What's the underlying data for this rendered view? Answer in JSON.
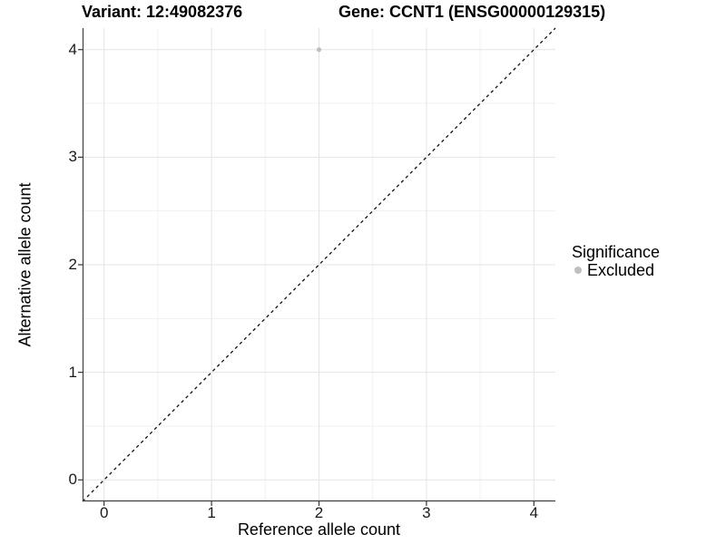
{
  "header": {
    "variant_title": "Variant: 12:49082376",
    "gene_title": "Gene: CCNT1 (ENSG00000129315)"
  },
  "axes": {
    "x_label": "Reference allele count",
    "y_label": "Alternative allele count"
  },
  "legend": {
    "title": "Significance",
    "items": [
      {
        "label": "Excluded",
        "color": "#bfbfbf"
      }
    ]
  },
  "colors": {
    "background": "#ffffff",
    "grid_major": "#e4e4e4",
    "grid_minor": "#f1f1f1",
    "axis_line": "#404040",
    "tick_mark": "#333333",
    "tick_text": "#1a1a1a",
    "point": "#bfbfbf",
    "reference_line": "#111111"
  },
  "chart_data": {
    "type": "scatter",
    "title": "Variant: 12:49082376 | Gene: CCNT1 (ENSG00000129315)",
    "xlabel": "Reference allele count",
    "ylabel": "Alternative allele count",
    "xlim": [
      -0.2,
      4.2
    ],
    "ylim": [
      -0.2,
      4.2
    ],
    "x_ticks": [
      0,
      1,
      2,
      3,
      4
    ],
    "y_ticks": [
      0,
      1,
      2,
      3,
      4
    ],
    "x_minor_ticks": [
      0.5,
      1.5,
      2.5,
      3.5
    ],
    "y_minor_ticks": [
      0.5,
      1.5,
      2.5,
      3.5
    ],
    "grid": true,
    "legend_position": "right",
    "legend_title": "Significance",
    "series": [
      {
        "name": "Excluded",
        "color": "#bfbfbf",
        "point_radius": 2.6,
        "points": [
          {
            "x": 2,
            "y": 4
          }
        ]
      }
    ],
    "reference_line": {
      "type": "abline",
      "slope": 1,
      "intercept": 0,
      "style": "dashed",
      "dash": [
        3.5,
        3.5
      ],
      "color": "#111111"
    }
  }
}
